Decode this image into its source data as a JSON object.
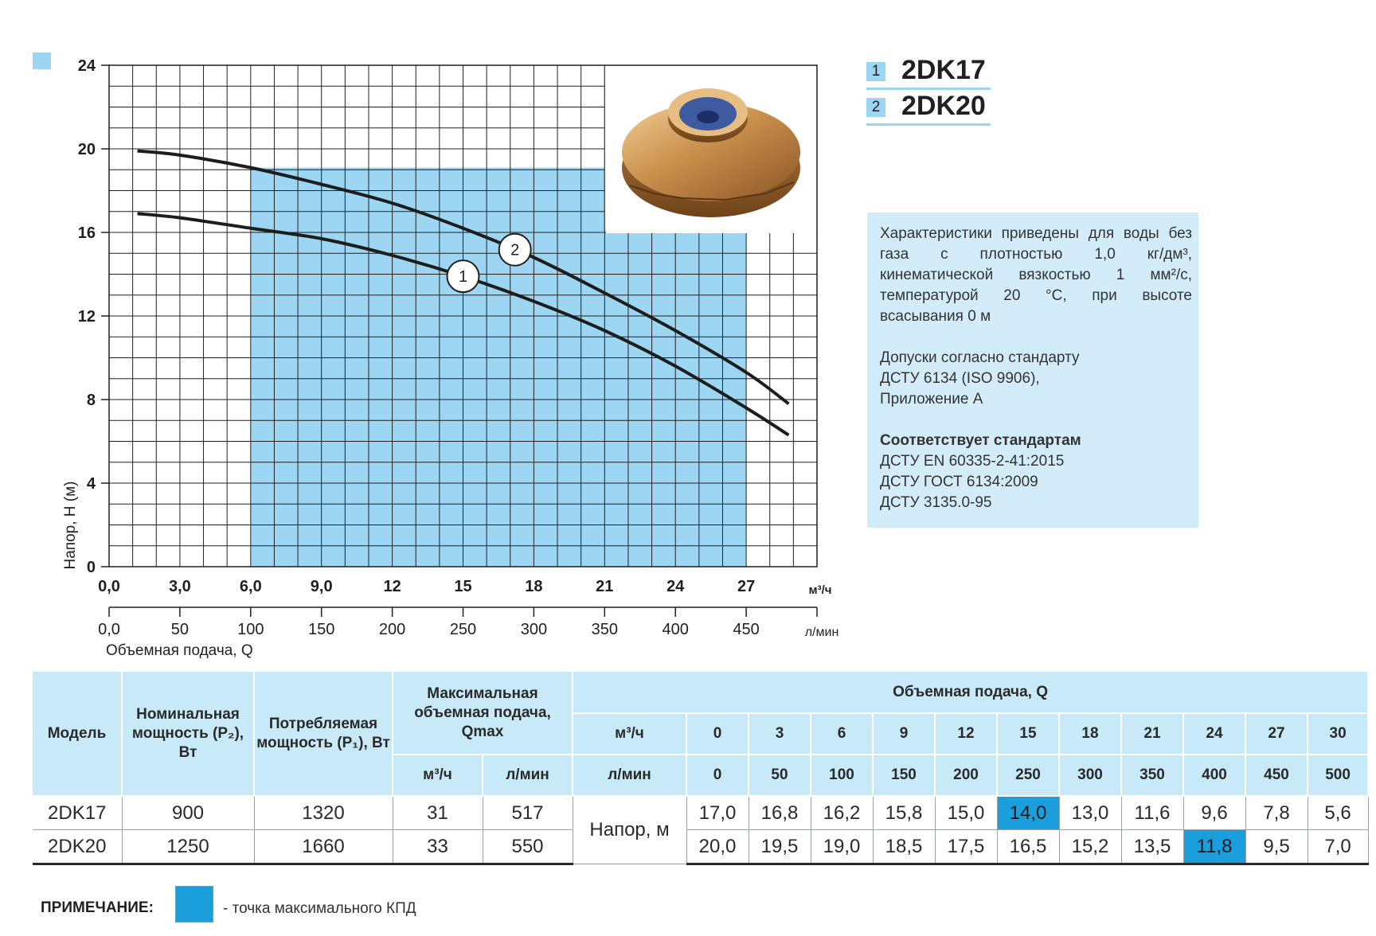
{
  "chart_data": {
    "type": "line",
    "ylabel": "Напор, Н (м)",
    "xlabel": "Объемная подача, Q",
    "x_unit_primary": "м³/ч",
    "x_unit_secondary": "л/мин",
    "x_ticks_primary": [
      "0,0",
      "3,0",
      "6,0",
      "9,0",
      "12",
      "15",
      "18",
      "21",
      "24",
      "27"
    ],
    "x_ticks_secondary": [
      "0,0",
      "50",
      "100",
      "150",
      "200",
      "250",
      "300",
      "350",
      "400",
      "450"
    ],
    "y_ticks": [
      "0",
      "4",
      "8",
      "12",
      "16",
      "20",
      "24"
    ],
    "xlim": [
      0,
      30
    ],
    "ylim": [
      0,
      24
    ],
    "grid": true,
    "working_range_m3h": [
      6,
      27
    ],
    "series": [
      {
        "label": "1",
        "x": [
          1.2,
          3,
          6,
          9,
          12,
          15,
          18,
          21,
          24,
          27,
          28.8
        ],
        "y": [
          16.9,
          16.7,
          16.2,
          15.7,
          14.9,
          13.9,
          12.7,
          11.3,
          9.6,
          7.6,
          6.3
        ]
      },
      {
        "label": "2",
        "x": [
          1.2,
          3,
          6,
          9,
          12,
          15,
          18,
          21,
          24,
          27,
          28.8
        ],
        "y": [
          19.9,
          19.7,
          19.1,
          18.3,
          17.4,
          16.2,
          14.8,
          13.1,
          11.3,
          9.3,
          7.8
        ]
      }
    ]
  },
  "legend": [
    {
      "num": "1",
      "name": "2DK17"
    },
    {
      "num": "2",
      "name": "2DK20"
    }
  ],
  "info": {
    "p1_line1": "Характеристики приведены для воды без газа с плотностью 1,0 кг/дм³, кинематической вязкостью 1 мм²/с, температурой 20 °C, при высоте всасывания 0 м",
    "p2_line1": "Допуски согласно стандарту",
    "p2_line2": "ДСТУ 6134 (ISO 9906),",
    "p2_line3": "Приложение А",
    "p3_title": "Соответствует стандартам",
    "p3_line1": "ДСТУ EN 60335-2-41:2015",
    "p3_line2": "ДСТУ ГОСТ 6134:2009",
    "p3_line3": "ДСТУ 3135.0-95"
  },
  "table": {
    "h_model": "Модель",
    "h_p2": "Номинальная мощность (P₂), Вт",
    "h_p1": "Потребляемая мощность (P₁), Вт",
    "h_qmax": "Максимальная объемная подача, Qmax",
    "h_q": "Объемная подача, Q",
    "unit_m3h": "м³/ч",
    "unit_lmin": "л/мин",
    "q_m3h": [
      "0",
      "3",
      "6",
      "9",
      "12",
      "15",
      "18",
      "21",
      "24",
      "27",
      "30"
    ],
    "q_lmin": [
      "0",
      "50",
      "100",
      "150",
      "200",
      "250",
      "300",
      "350",
      "400",
      "450",
      "500"
    ],
    "head_label": "Напор, м",
    "rows": [
      {
        "model": "2DK17",
        "p2": "900",
        "p1": "1320",
        "qmax_m3h": "31",
        "qmax_lmin": "517",
        "heads": [
          "17,0",
          "16,8",
          "16,2",
          "15,8",
          "15,0",
          "14,0",
          "13,0",
          "11,6",
          "9,6",
          "7,8",
          "5,6"
        ]
      },
      {
        "model": "2DK20",
        "p2": "1250",
        "p1": "1660",
        "qmax_m3h": "33",
        "qmax_lmin": "550",
        "heads": [
          "20,0",
          "19,5",
          "19,0",
          "18,5",
          "17,5",
          "16,5",
          "15,2",
          "13,5",
          "11,8",
          "9,5",
          "7,0"
        ]
      }
    ]
  },
  "note": {
    "label": "ПРИМЕЧАНИЕ:",
    "text": "- точка максимального КПД"
  },
  "colors": {
    "working_range": "#9dd6f2",
    "bep_highlight": "#1a9fdc",
    "curve": "#1d1d1b"
  }
}
